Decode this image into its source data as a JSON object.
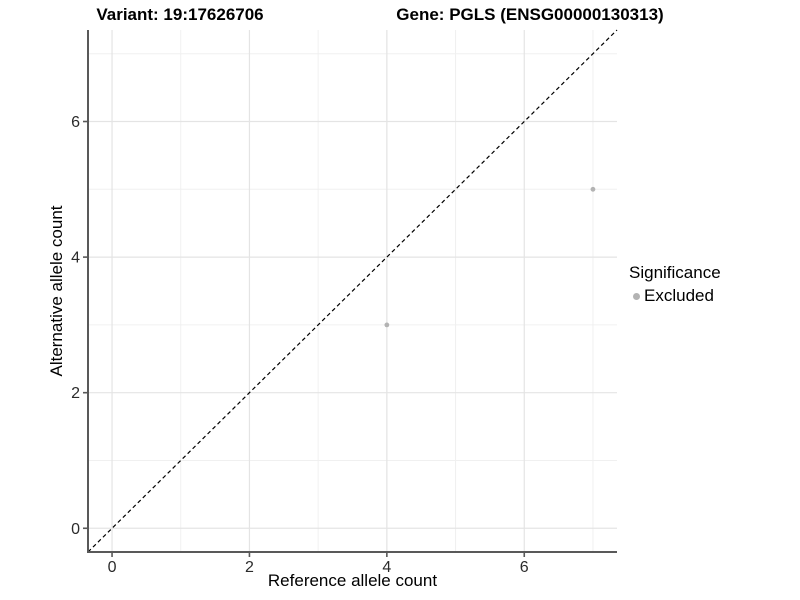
{
  "header": {
    "title_left": "Variant: 19:17626706",
    "title_right": "Gene: PGLS (ENSG00000130313)"
  },
  "chart_data": {
    "type": "scatter",
    "title": "Variant: 19:17626706 — Gene: PGLS (ENSG00000130313)",
    "xlabel": "Reference allele count",
    "ylabel": "Alternative allele count",
    "xlim": [
      -0.35,
      7.35
    ],
    "ylim": [
      -0.35,
      7.35
    ],
    "x_ticks": [
      0,
      2,
      4,
      6
    ],
    "y_ticks": [
      0,
      2,
      4,
      6
    ],
    "minor_grid": [
      1,
      3,
      5,
      7
    ],
    "grid": true,
    "series": [
      {
        "name": "Excluded",
        "color": "#b3b3b3",
        "marker": "circle",
        "points": [
          [
            4,
            3
          ],
          [
            7,
            5
          ]
        ]
      }
    ],
    "reference_line": {
      "kind": "identity",
      "dashed": true,
      "color": "#000000"
    },
    "legend": {
      "title": "Significance",
      "position": "right",
      "items": [
        {
          "label": "Excluded",
          "color": "#b3b3b3",
          "marker": "circle"
        }
      ]
    },
    "colors": {
      "axis_line": "#595959",
      "tick_label": "#2b2b2b",
      "grid_major": "#e4e4e4",
      "grid_minor": "#f0f0f0"
    }
  }
}
